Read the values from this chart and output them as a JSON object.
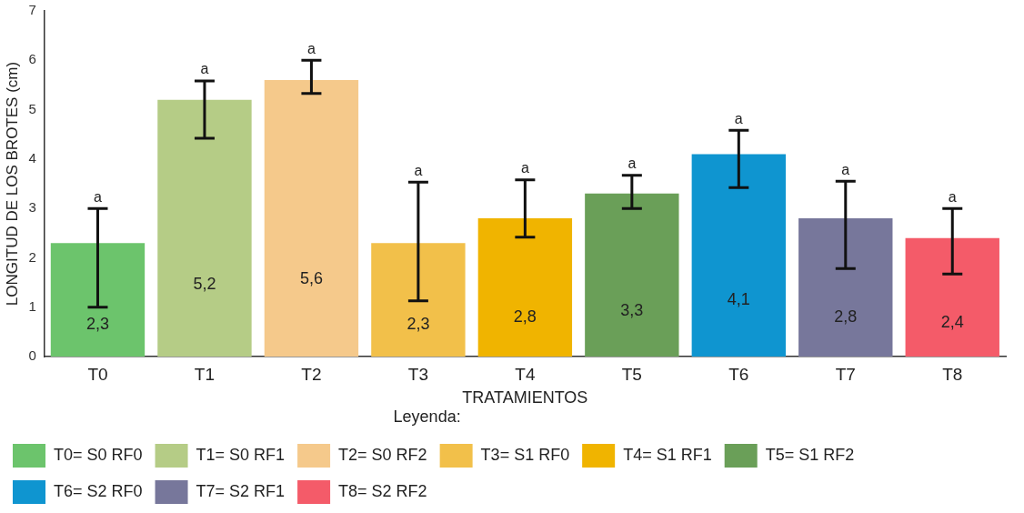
{
  "chart_data": {
    "type": "bar",
    "xlabel": "TRATAMIENTOS",
    "ylabel": "LONGITUD DE LOS BROTES (cm)",
    "categories": [
      "T0",
      "T1",
      "T2",
      "T3",
      "T4",
      "T5",
      "T6",
      "T7",
      "T8"
    ],
    "ylim": [
      0,
      7
    ],
    "yticks": [
      0,
      1,
      2,
      3,
      4,
      5,
      6,
      7
    ],
    "legend": "bottom",
    "legend_title": "Leyenda:",
    "series": [
      {
        "name": "T0= S0 RF0",
        "color": "#6cc46c",
        "values": [
          2.3,
          null,
          null,
          null,
          null,
          null,
          null,
          null,
          null
        ],
        "errors": [
          [
            1.0,
            3.0
          ],
          null,
          null,
          null,
          null,
          null,
          null,
          null,
          null
        ],
        "value_labels": [
          "2,3",
          null,
          null,
          null,
          null,
          null,
          null,
          null,
          null
        ]
      },
      {
        "name": "T1= S0 RF1",
        "color": "#b5cc86",
        "values": [
          null,
          5.2,
          null,
          null,
          null,
          null,
          null,
          null,
          null
        ],
        "errors": [
          null,
          [
            4.42,
            5.58
          ],
          null,
          null,
          null,
          null,
          null,
          null,
          null
        ],
        "value_labels": [
          null,
          "5,2",
          null,
          null,
          null,
          null,
          null,
          null,
          null
        ]
      },
      {
        "name": "T2= S0 RF2",
        "color": "#f5c98b",
        "values": [
          null,
          null,
          5.6,
          null,
          null,
          null,
          null,
          null,
          null
        ],
        "errors": [
          null,
          null,
          [
            5.33,
            6.0
          ],
          null,
          null,
          null,
          null,
          null,
          null
        ],
        "value_labels": [
          null,
          null,
          "5,6",
          null,
          null,
          null,
          null,
          null,
          null
        ]
      },
      {
        "name": "T3= S1 RF0",
        "color": "#f2c04a",
        "values": [
          null,
          null,
          null,
          2.3,
          null,
          null,
          null,
          null,
          null
        ],
        "errors": [
          null,
          null,
          null,
          [
            1.13,
            3.53
          ],
          null,
          null,
          null,
          null,
          null
        ],
        "value_labels": [
          null,
          null,
          null,
          "2,3",
          null,
          null,
          null,
          null,
          null
        ]
      },
      {
        "name": "T4= S1 RF1",
        "color": "#f0b400",
        "values": [
          null,
          null,
          null,
          null,
          2.8,
          null,
          null,
          null,
          null
        ],
        "errors": [
          null,
          null,
          null,
          null,
          [
            2.42,
            3.58
          ],
          null,
          null,
          null,
          null
        ],
        "value_labels": [
          null,
          null,
          null,
          null,
          "2,8",
          null,
          null,
          null,
          null
        ]
      },
      {
        "name": "T5= S1 RF2",
        "color": "#6a9f58",
        "values": [
          null,
          null,
          null,
          null,
          null,
          3.3,
          null,
          null,
          null
        ],
        "errors": [
          null,
          null,
          null,
          null,
          null,
          [
            3.0,
            3.67
          ],
          null,
          null,
          null
        ],
        "value_labels": [
          null,
          null,
          null,
          null,
          null,
          "3,3",
          null,
          null,
          null
        ]
      },
      {
        "name": "T6= S2 RF0",
        "color": "#0f95d0",
        "values": [
          null,
          null,
          null,
          null,
          null,
          null,
          4.1,
          null,
          null
        ],
        "errors": [
          null,
          null,
          null,
          null,
          null,
          null,
          [
            3.42,
            4.58
          ],
          null,
          null
        ],
        "value_labels": [
          null,
          null,
          null,
          null,
          null,
          null,
          "4,1",
          null,
          null
        ]
      },
      {
        "name": "T7= S2 RF1",
        "color": "#77779b",
        "values": [
          null,
          null,
          null,
          null,
          null,
          null,
          null,
          2.8,
          null
        ],
        "errors": [
          null,
          null,
          null,
          null,
          null,
          null,
          null,
          [
            1.78,
            3.55
          ],
          null
        ],
        "value_labels": [
          null,
          null,
          null,
          null,
          null,
          null,
          null,
          "2,8",
          null
        ]
      },
      {
        "name": "T8= S2 RF2",
        "color": "#f45b69",
        "values": [
          null,
          null,
          null,
          null,
          null,
          null,
          null,
          null,
          2.4
        ],
        "errors": [
          null,
          null,
          null,
          null,
          null,
          null,
          null,
          null,
          [
            1.67,
            3.0
          ]
        ],
        "value_labels": [
          null,
          null,
          null,
          null,
          null,
          null,
          null,
          null,
          "2,4"
        ]
      }
    ],
    "annotations": [
      "a",
      "a",
      "a",
      "a",
      "a",
      "a",
      "a",
      "a",
      "a"
    ]
  }
}
